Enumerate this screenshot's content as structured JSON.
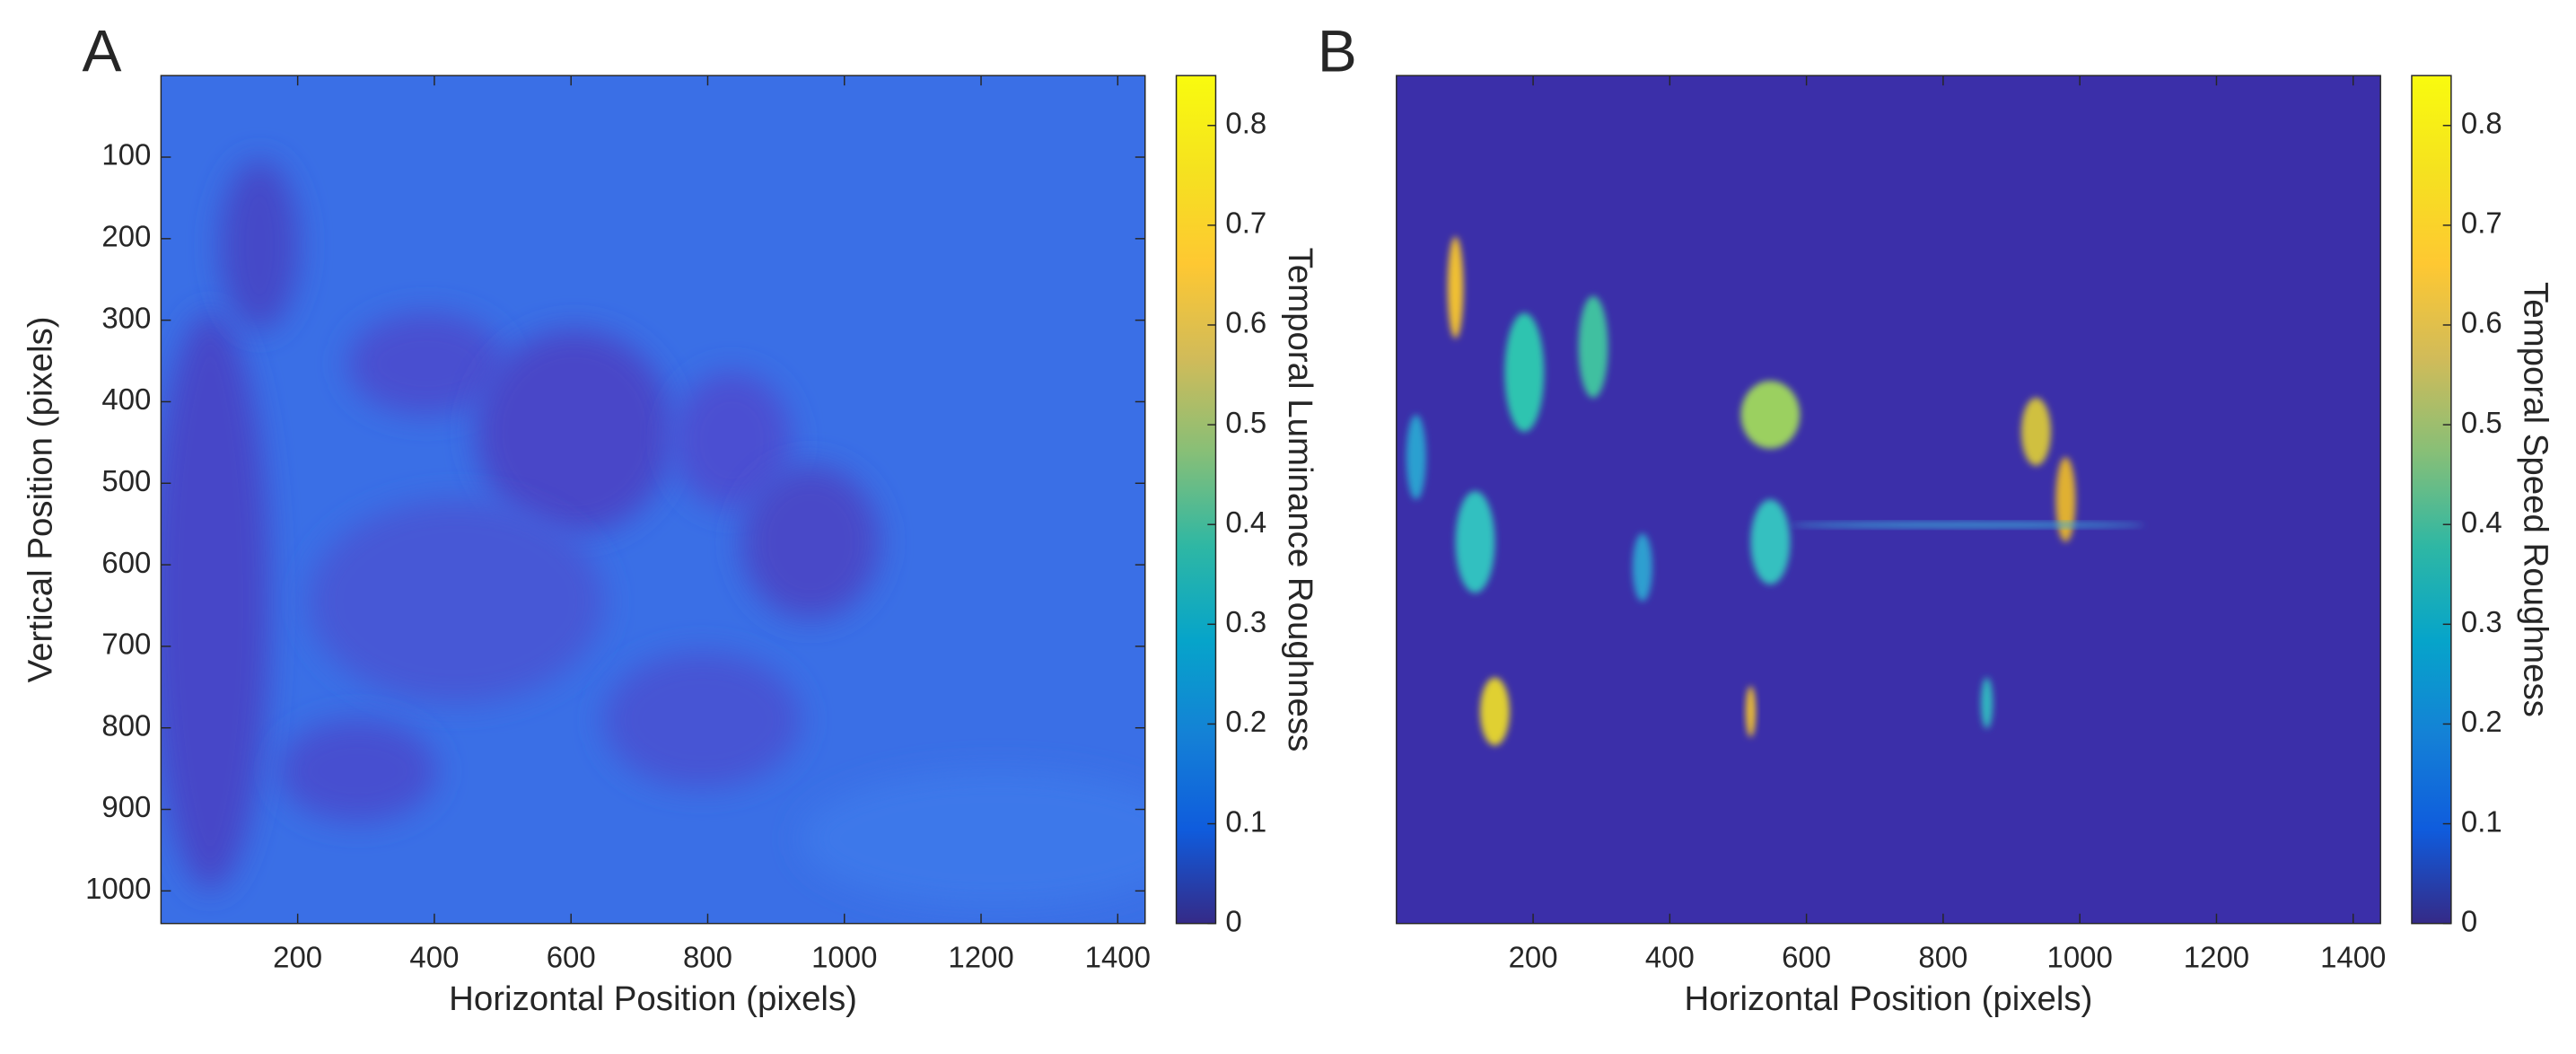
{
  "chart_data": [
    {
      "type": "heatmap",
      "panel_label": "A",
      "x_label": "Horizontal Position (pixels)",
      "y_label": "Vertical Position (pixels)",
      "colorbar_label": "Temporal Luminance Roughness",
      "colormap": "parula",
      "xlim": [
        0,
        1440
      ],
      "ylim": [
        0,
        1040
      ],
      "y_reversed": true,
      "xticks": [
        200,
        400,
        600,
        800,
        1000,
        1200,
        1400
      ],
      "yticks": [
        100,
        200,
        300,
        400,
        500,
        600,
        700,
        800,
        900,
        1000
      ],
      "clim": [
        0,
        0.85
      ],
      "cticks": [
        0,
        0.1,
        0.2,
        0.3,
        0.4,
        0.5,
        0.6,
        0.7,
        0.8
      ]
    },
    {
      "type": "heatmap",
      "panel_label": "B",
      "x_label": "Horizontal Position (pixels)",
      "colorbar_label": "Temporal Speed Roughness",
      "colormap": "parula",
      "xlim": [
        0,
        1440
      ],
      "xticks": [
        200,
        400,
        600,
        800,
        1000,
        1200,
        1400
      ],
      "clim": [
        0,
        0.85
      ],
      "cticks": [
        0,
        0.1,
        0.2,
        0.3,
        0.4,
        0.5,
        0.6,
        0.7,
        0.8
      ]
    }
  ]
}
